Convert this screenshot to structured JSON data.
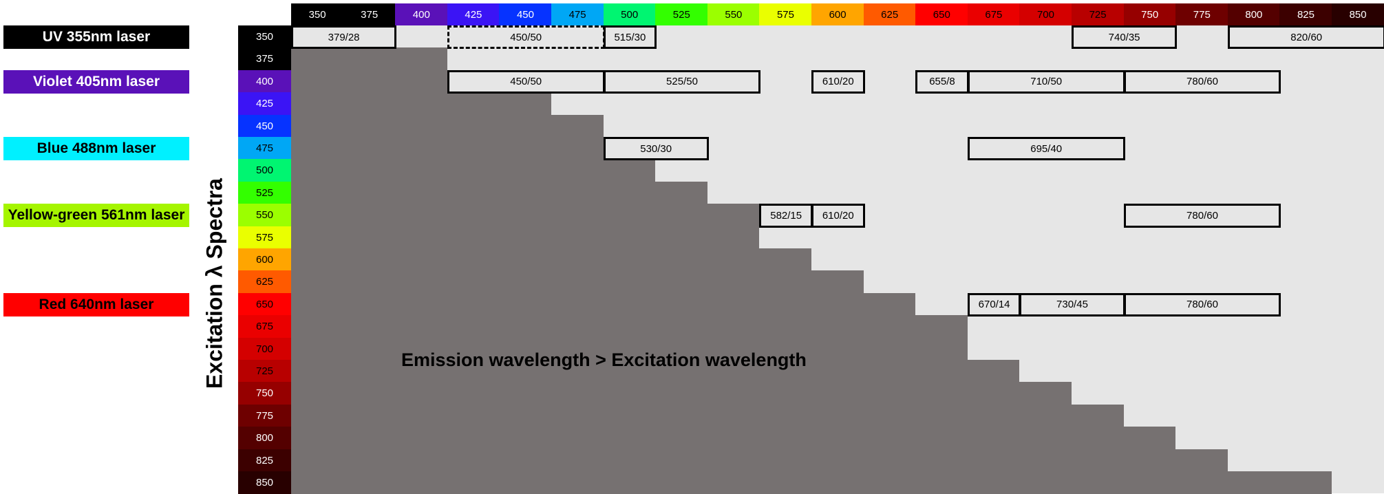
{
  "emission_wavelengths": [
    {
      "label": "350",
      "color": "#000000",
      "text_color": "#ffffff"
    },
    {
      "label": "375",
      "color": "#000000",
      "text_color": "#ffffff"
    },
    {
      "label": "400",
      "color": "#5a11b8",
      "text_color": "#ffffff"
    },
    {
      "label": "425",
      "color": "#3b14f5",
      "text_color": "#ffffff"
    },
    {
      "label": "450",
      "color": "#0633ff",
      "text_color": "#ffffff"
    },
    {
      "label": "475",
      "color": "#00a7f5",
      "text_color": "#000000"
    },
    {
      "label": "500",
      "color": "#00f571",
      "text_color": "#000000"
    },
    {
      "label": "525",
      "color": "#33ff00",
      "text_color": "#000000"
    },
    {
      "label": "550",
      "color": "#9bff00",
      "text_color": "#000000"
    },
    {
      "label": "575",
      "color": "#eaff00",
      "text_color": "#000000"
    },
    {
      "label": "600",
      "color": "#ffa500",
      "text_color": "#000000"
    },
    {
      "label": "625",
      "color": "#ff5a00",
      "text_color": "#000000"
    },
    {
      "label": "650",
      "color": "#ff0000",
      "text_color": "#000000"
    },
    {
      "label": "675",
      "color": "#ea0000",
      "text_color": "#000000"
    },
    {
      "label": "700",
      "color": "#d40000",
      "text_color": "#000000"
    },
    {
      "label": "725",
      "color": "#b80000",
      "text_color": "#000000"
    },
    {
      "label": "750",
      "color": "#960000",
      "text_color": "#ffffff"
    },
    {
      "label": "775",
      "color": "#6e0000",
      "text_color": "#ffffff"
    },
    {
      "label": "800",
      "color": "#540000",
      "text_color": "#ffffff"
    },
    {
      "label": "825",
      "color": "#3c0000",
      "text_color": "#ffffff"
    },
    {
      "label": "850",
      "color": "#280000",
      "text_color": "#ffffff"
    }
  ],
  "excitation_wavelengths": [
    {
      "label": "350",
      "color": "#000000",
      "text_color": "#ffffff"
    },
    {
      "label": "375",
      "color": "#000000",
      "text_color": "#ffffff"
    },
    {
      "label": "400",
      "color": "#5a11b8",
      "text_color": "#ffffff"
    },
    {
      "label": "425",
      "color": "#3b14f5",
      "text_color": "#ffffff"
    },
    {
      "label": "450",
      "color": "#0633ff",
      "text_color": "#ffffff"
    },
    {
      "label": "475",
      "color": "#00a7f5",
      "text_color": "#000000"
    },
    {
      "label": "500",
      "color": "#00f571",
      "text_color": "#000000"
    },
    {
      "label": "525",
      "color": "#33ff00",
      "text_color": "#000000"
    },
    {
      "label": "550",
      "color": "#9bff00",
      "text_color": "#000000"
    },
    {
      "label": "575",
      "color": "#eaff00",
      "text_color": "#000000"
    },
    {
      "label": "600",
      "color": "#ffa500",
      "text_color": "#000000"
    },
    {
      "label": "625",
      "color": "#ff5a00",
      "text_color": "#000000"
    },
    {
      "label": "650",
      "color": "#ff0000",
      "text_color": "#000000"
    },
    {
      "label": "675",
      "color": "#ea0000",
      "text_color": "#000000"
    },
    {
      "label": "700",
      "color": "#d40000",
      "text_color": "#000000"
    },
    {
      "label": "725",
      "color": "#b80000",
      "text_color": "#000000"
    },
    {
      "label": "750",
      "color": "#960000",
      "text_color": "#ffffff"
    },
    {
      "label": "775",
      "color": "#6e0000",
      "text_color": "#ffffff"
    },
    {
      "label": "800",
      "color": "#540000",
      "text_color": "#ffffff"
    },
    {
      "label": "825",
      "color": "#3c0000",
      "text_color": "#ffffff"
    },
    {
      "label": "850",
      "color": "#280000",
      "text_color": "#ffffff"
    }
  ],
  "lasers": [
    {
      "label": "UV 355nm laser",
      "row": 0,
      "color": "#000000",
      "text_color": "#ffffff"
    },
    {
      "label": "Violet 405nm laser",
      "row": 2,
      "color": "#5a11b8",
      "text_color": "#ffffff"
    },
    {
      "label": "Blue 488nm laser",
      "row": 5,
      "color": "#00f0ff",
      "text_color": "#000000"
    },
    {
      "label": "Yellow-green 561nm laser",
      "row": 8,
      "color": "#a5f500",
      "text_color": "#000000"
    },
    {
      "label": "Red 640nm laser",
      "row": 12,
      "color": "#ff0000",
      "text_color": "#000000"
    }
  ],
  "filters": [
    {
      "label": "379/28",
      "row": 0,
      "from": 0,
      "to": 2,
      "style": "solid"
    },
    {
      "label": "450/50",
      "row": 0,
      "from": 3,
      "to": 6,
      "style": "dashed"
    },
    {
      "label": "515/30",
      "row": 0,
      "from": 6,
      "to": 7,
      "style": "solid"
    },
    {
      "label": "740/35",
      "row": 0,
      "from": 15,
      "to": 17,
      "style": "solid"
    },
    {
      "label": "820/60",
      "row": 0,
      "from": 18,
      "to": 21,
      "style": "solid"
    },
    {
      "label": "450/50",
      "row": 2,
      "from": 3,
      "to": 6,
      "style": "solid"
    },
    {
      "label": "525/50",
      "row": 2,
      "from": 6,
      "to": 9,
      "style": "solid"
    },
    {
      "label": "610/20",
      "row": 2,
      "from": 10,
      "to": 11,
      "style": "solid"
    },
    {
      "label": "655/8",
      "row": 2,
      "from": 12,
      "to": 13,
      "style": "solid"
    },
    {
      "label": "710/50",
      "row": 2,
      "from": 13,
      "to": 16,
      "style": "solid"
    },
    {
      "label": "780/60",
      "row": 2,
      "from": 16,
      "to": 19,
      "style": "solid"
    },
    {
      "label": "530/30",
      "row": 5,
      "from": 6,
      "to": 8,
      "style": "solid"
    },
    {
      "label": "695/40",
      "row": 5,
      "from": 13,
      "to": 16,
      "style": "solid"
    },
    {
      "label": "582/15",
      "row": 8,
      "from": 9,
      "to": 10,
      "style": "solid"
    },
    {
      "label": "610/20",
      "row": 8,
      "from": 10,
      "to": 11,
      "style": "solid"
    },
    {
      "label": "780/60",
      "row": 8,
      "from": 16,
      "to": 19,
      "style": "solid"
    },
    {
      "label": "670/14",
      "row": 12,
      "from": 13,
      "to": 14,
      "style": "solid"
    },
    {
      "label": "730/45",
      "row": 12,
      "from": 14,
      "to": 16,
      "style": "solid"
    },
    {
      "label": "780/60",
      "row": 12,
      "from": 16,
      "to": 19,
      "style": "solid"
    }
  ],
  "stair_edges": [
    1,
    3,
    4,
    5,
    6,
    6,
    7,
    8,
    9,
    9,
    10,
    11,
    12,
    13,
    13,
    14,
    15,
    16,
    17,
    18,
    20
  ],
  "colors": {
    "blocked": "#767171",
    "open": "#e6e6e6",
    "border": "#000000"
  },
  "axis_title": "Excitation λ Spectra",
  "annotation": "Emission wavelength > Excitation wavelength"
}
